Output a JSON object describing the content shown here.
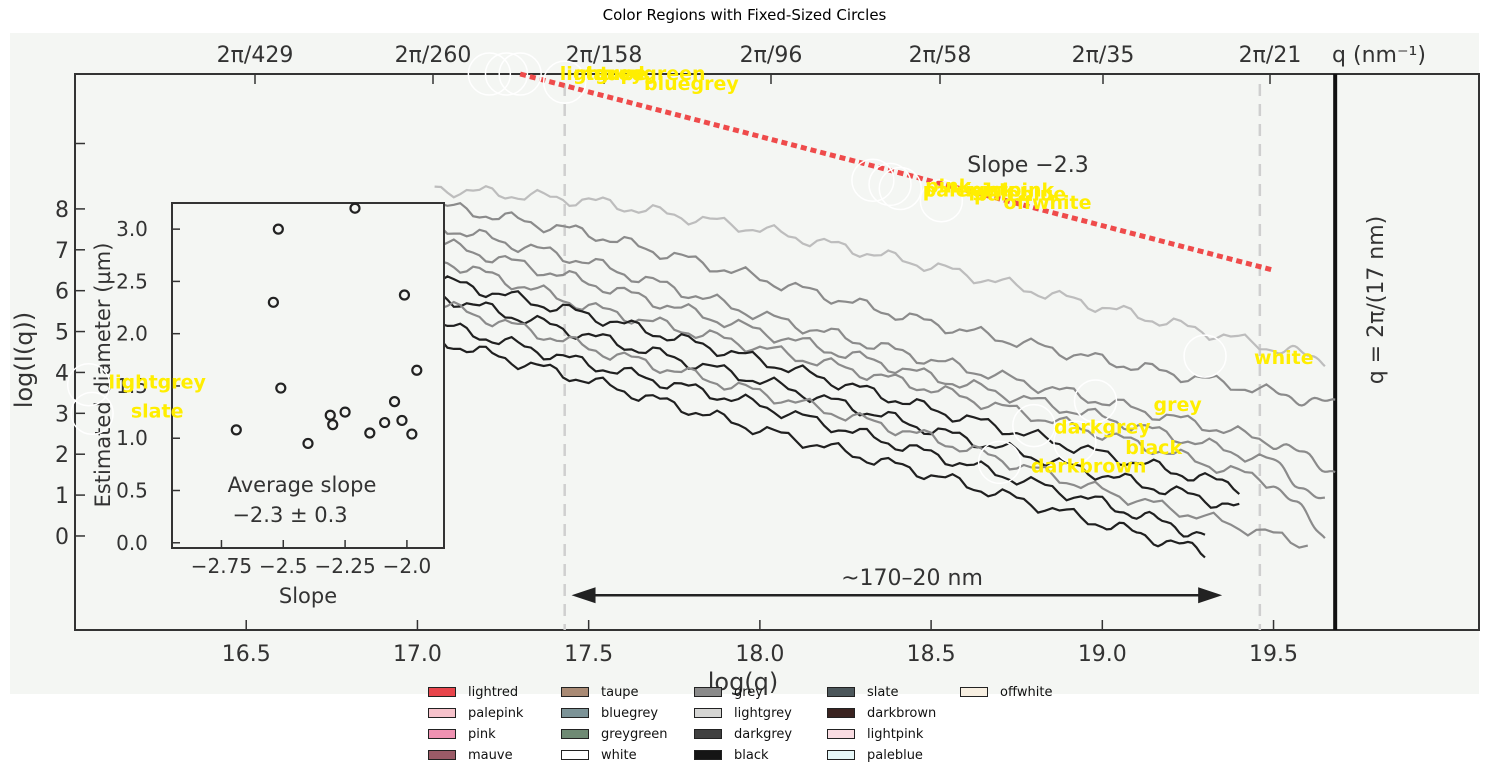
{
  "title": "Color Regions with Fixed-Sized Circles",
  "chart_data": {
    "type": "line",
    "title": "Color Regions with Fixed-Sized Circles",
    "xlabel": "log(q)",
    "ylabel": "log(I(q))",
    "top_axis_label": "q (nm⁻¹)",
    "right_label": "q = 2π/(17 nm)",
    "x_ticks": [
      "16.5",
      "17.0",
      "17.5",
      "18.0",
      "18.5",
      "19.0",
      "19.5"
    ],
    "y_ticks": [
      "8",
      "7",
      "6",
      "5",
      "4",
      "3",
      "2",
      "1",
      "0"
    ],
    "top_ticks": [
      "2π/429",
      "2π/260",
      "2π/158",
      "2π/96",
      "2π/58",
      "2π/35",
      "2π/21"
    ],
    "xlim": [
      16.0,
      20.1
    ],
    "ylim": [
      -2.3,
      11.3
    ],
    "slope_annotation": "Slope −2.3",
    "slope_line": {
      "x": [
        17.3,
        19.5
      ],
      "y": [
        11.3,
        6.5
      ]
    },
    "range_annotation": "~170–20 nm",
    "range_arrow": {
      "x": [
        17.45,
        19.35
      ],
      "y": -1.45
    },
    "dashed_lines_x": [
      17.43,
      19.46
    ],
    "cutoff_x": 19.68,
    "curves": [
      {
        "x": [
          17.05,
          17.5,
          18.0,
          18.5,
          19.0,
          19.5,
          19.65
        ],
        "y": [
          8.5,
          8.2,
          7.5,
          6.6,
          5.6,
          4.6,
          4.3
        ],
        "tone": "light"
      },
      {
        "x": [
          17.05,
          17.5,
          18.0,
          18.5,
          19.0,
          19.5,
          19.68
        ],
        "y": [
          8.1,
          7.4,
          6.3,
          5.2,
          4.3,
          3.5,
          3.2
        ],
        "tone": "mid"
      },
      {
        "x": [
          17.05,
          17.5,
          18.0,
          18.5,
          19.0,
          19.5,
          19.68
        ],
        "y": [
          7.6,
          6.7,
          5.4,
          4.3,
          3.3,
          2.3,
          1.6
        ],
        "tone": "mid"
      },
      {
        "x": [
          17.05,
          17.5,
          18.0,
          18.5,
          19.0,
          19.5,
          19.65
        ],
        "y": [
          7.2,
          6.2,
          5.0,
          3.9,
          2.9,
          1.8,
          0.8
        ],
        "tone": "mid"
      },
      {
        "x": [
          17.05,
          17.5,
          18.0,
          18.5,
          19.0,
          19.5,
          19.65
        ],
        "y": [
          6.8,
          5.6,
          4.6,
          3.6,
          2.5,
          1.3,
          0.0
        ],
        "tone": "mid"
      },
      {
        "x": [
          17.05,
          17.5,
          18.0,
          18.5,
          19.0,
          19.4
        ],
        "y": [
          6.3,
          5.4,
          4.3,
          3.1,
          2.0,
          1.2
        ],
        "tone": "dark"
      },
      {
        "x": [
          17.05,
          17.5,
          18.0,
          18.5,
          19.0,
          19.4
        ],
        "y": [
          5.9,
          4.9,
          3.8,
          2.6,
          1.5,
          0.7
        ],
        "tone": "dark"
      },
      {
        "x": [
          17.05,
          17.5,
          18.0,
          18.5,
          19.0,
          19.3
        ],
        "y": [
          5.2,
          4.2,
          3.2,
          2.0,
          0.8,
          0.0
        ],
        "tone": "dark"
      },
      {
        "x": [
          17.05,
          17.5,
          18.0,
          18.5,
          19.0,
          19.3
        ],
        "y": [
          4.8,
          3.8,
          2.6,
          1.5,
          0.3,
          -0.4
        ],
        "tone": "dark"
      },
      {
        "x": [
          17.05,
          17.5,
          18.0,
          18.5,
          19.0,
          19.6
        ],
        "y": [
          5.7,
          4.6,
          3.5,
          2.4,
          1.1,
          -0.2
        ],
        "tone": "mid"
      }
    ],
    "inset": {
      "type": "scatter",
      "xlabel": "Slope",
      "ylabel": "Estimated diameter (µm)",
      "x_ticks": [
        "−2.75",
        "−2.5",
        "−2.25",
        "−2.0"
      ],
      "y_ticks": [
        "3.0",
        "2.5",
        "2.0",
        "1.5",
        "1.0",
        "0.5",
        "0.0"
      ],
      "xlim": [
        -2.95,
        -1.85
      ],
      "ylim": [
        -0.05,
        3.25
      ],
      "annotation_line1": "Average slope",
      "annotation_line2": "−2.3 ± 0.3",
      "points": [
        {
          "x": -2.69,
          "y": 1.08
        },
        {
          "x": -2.52,
          "y": 3.0
        },
        {
          "x": -2.54,
          "y": 2.3
        },
        {
          "x": -2.51,
          "y": 1.48
        },
        {
          "x": -2.4,
          "y": 0.95
        },
        {
          "x": -2.31,
          "y": 1.22
        },
        {
          "x": -2.3,
          "y": 1.13
        },
        {
          "x": -2.25,
          "y": 1.25
        },
        {
          "x": -2.21,
          "y": 3.2
        },
        {
          "x": -2.15,
          "y": 1.05
        },
        {
          "x": -2.09,
          "y": 1.15
        },
        {
          "x": -2.05,
          "y": 1.35
        },
        {
          "x": -2.02,
          "y": 1.17
        },
        {
          "x": -2.01,
          "y": 2.37
        },
        {
          "x": -1.98,
          "y": 1.04
        },
        {
          "x": -1.96,
          "y": 1.65
        }
      ]
    },
    "overlay_circles": [
      {
        "x": 17.21,
        "y": 11.3
      },
      {
        "x": 17.26,
        "y": 11.3
      },
      {
        "x": 17.3,
        "y": 11.3
      },
      {
        "x": 17.43,
        "y": 11.1
      },
      {
        "x": 18.33,
        "y": 8.7
      },
      {
        "x": 18.38,
        "y": 8.6
      },
      {
        "x": 18.41,
        "y": 8.5
      },
      {
        "x": 18.53,
        "y": 8.2
      },
      {
        "x": 16.04,
        "y": 3.7
      },
      {
        "x": 16.05,
        "y": 3.0
      },
      {
        "x": 19.3,
        "y": 4.4
      },
      {
        "x": 18.98,
        "y": 3.3
      },
      {
        "x": 18.8,
        "y": 2.7
      },
      {
        "x": 18.92,
        "y": 2.3
      },
      {
        "x": 18.7,
        "y": 1.8
      }
    ],
    "overlay_labels": [
      {
        "text": "greygreen",
        "x": 17.68,
        "y": 11.3
      },
      {
        "text": "lightred",
        "x": 17.54,
        "y": 11.3
      },
      {
        "text": "taupe",
        "x": 17.58,
        "y": 11.3
      },
      {
        "text": "mauve",
        "x": 17.56,
        "y": 11.3
      },
      {
        "text": "bluegrey",
        "x": 17.8,
        "y": 11.05
      },
      {
        "text": "pink",
        "x": 18.55,
        "y": 8.55
      },
      {
        "text": "palepink",
        "x": 18.61,
        "y": 8.45
      },
      {
        "text": "lightpink",
        "x": 18.72,
        "y": 8.45
      },
      {
        "text": "paleblue",
        "x": 18.76,
        "y": 8.35
      },
      {
        "text": "offwhite",
        "x": 18.84,
        "y": 8.15
      },
      {
        "text": "lightgrey",
        "x": 16.24,
        "y": 3.75
      },
      {
        "text": "slate",
        "x": 16.24,
        "y": 3.05
      },
      {
        "text": "white",
        "x": 19.53,
        "y": 4.35
      },
      {
        "text": "grey",
        "x": 19.22,
        "y": 3.2
      },
      {
        "text": "darkgrey",
        "x": 19.0,
        "y": 2.65
      },
      {
        "text": "black",
        "x": 19.15,
        "y": 2.15
      },
      {
        "text": "darkbrown",
        "x": 18.96,
        "y": 1.7
      }
    ],
    "legend": [
      {
        "label": "lightred",
        "color": "#e8454b"
      },
      {
        "label": "palepink",
        "color": "#f6c2cb"
      },
      {
        "label": "pink",
        "color": "#ef92b2"
      },
      {
        "label": "mauve",
        "color": "#9b5b67"
      },
      {
        "label": "taupe",
        "color": "#a98a74"
      },
      {
        "label": "bluegrey",
        "color": "#7c9397"
      },
      {
        "label": "greygreen",
        "color": "#6f8a74"
      },
      {
        "label": "white",
        "color": "#ffffff"
      },
      {
        "label": "grey",
        "color": "#8a8a8a"
      },
      {
        "label": "lightgrey",
        "color": "#d5d5d3"
      },
      {
        "label": "darkgrey",
        "color": "#404040"
      },
      {
        "label": "black",
        "color": "#151515"
      },
      {
        "label": "slate",
        "color": "#4c575b"
      },
      {
        "label": "darkbrown",
        "color": "#3a2320"
      },
      {
        "label": "lightpink",
        "color": "#f9dce2"
      },
      {
        "label": "paleblue",
        "color": "#e6f7f8"
      },
      {
        "label": "offwhite",
        "color": "#f7efe1"
      }
    ],
    "colors": {
      "photo_bg": "#f4f6f3",
      "slope_line": "#ef4b4b",
      "overlay_text": "#ffee00",
      "curve_light": "#bdbdbd",
      "curve_mid": "#8b8b8b",
      "curve_dark": "#202020"
    }
  }
}
